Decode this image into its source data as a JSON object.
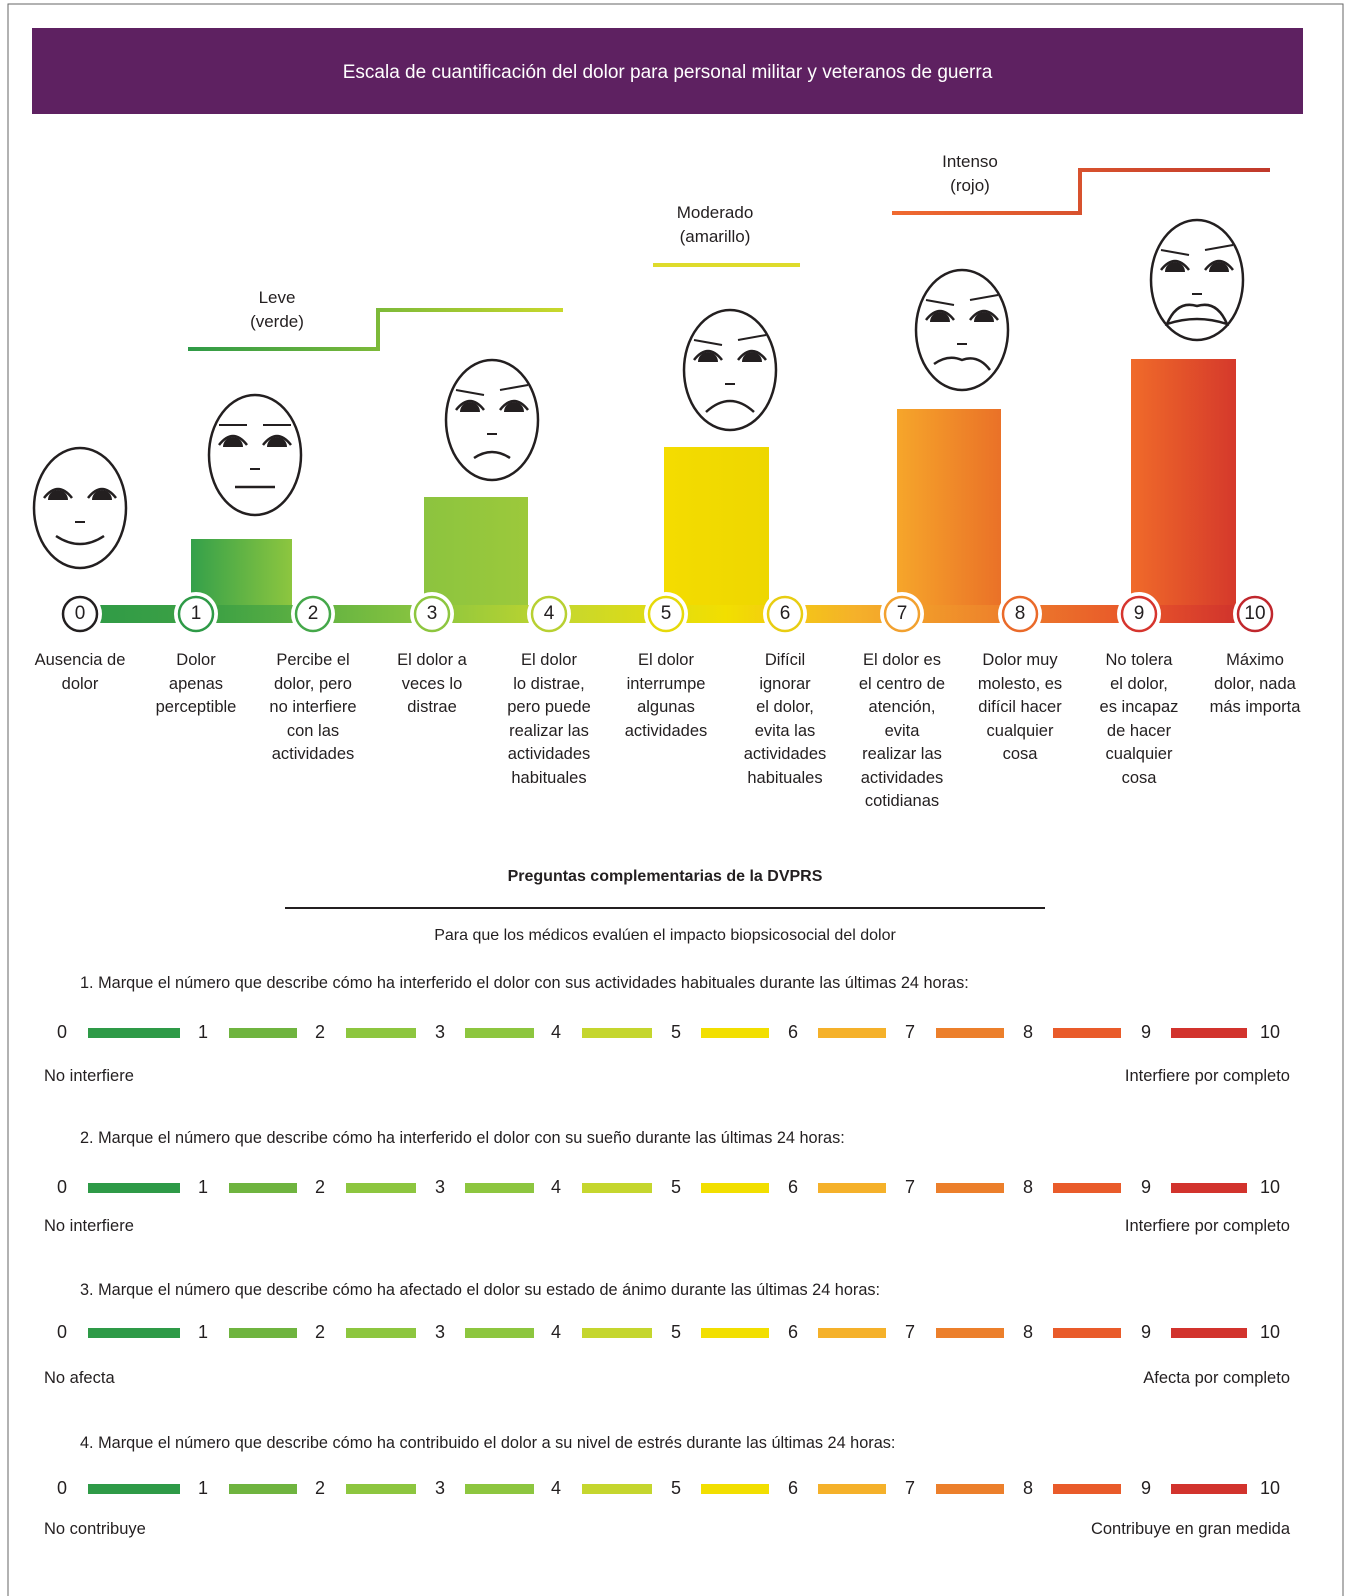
{
  "header": {
    "title": "Escala de cuantificación del dolor para personal militar y veteranos de guerra"
  },
  "severity_bands": [
    "Leve\n(verde)",
    "Moderado\n(amarillo)",
    "Intenso\n(rojo)"
  ],
  "levels": [
    {
      "number": 0,
      "description": "Ausencia de\ndolor"
    },
    {
      "number": 1,
      "description": "Dolor\napenas\nperceptible"
    },
    {
      "number": 2,
      "description": "Percibe el\ndolor, pero\nno interfiere\ncon las\nactividades"
    },
    {
      "number": 3,
      "description": "El dolor a\nveces lo\ndistrae"
    },
    {
      "number": 4,
      "description": "El dolor\nlo distrae,\npero puede\nrealizar las\nactividades\nhabituales"
    },
    {
      "number": 5,
      "description": "El dolor\ninterrumpe\nalgunas\nactividades"
    },
    {
      "number": 6,
      "description": "Difícil\nignorar\nel dolor,\nevita las\nactividades\nhabituales"
    },
    {
      "number": 7,
      "description": "El dolor es\nel centro de\natención,\nevita\nrealizar las\nactividades\ncotidianas"
    },
    {
      "number": 8,
      "description": "Dolor muy\nmolesto, es\ndifícil hacer\ncualquier\ncosa"
    },
    {
      "number": 9,
      "description": "No tolera\nel dolor,\nes incapaz\nde hacer\ncualquier\ncosa"
    },
    {
      "number": 10,
      "description": "Máximo\ndolor, nada\nmás importa"
    }
  ],
  "supplementary": {
    "title": "Preguntas complementarias de la DVPRS",
    "subtitle": "Para que los médicos evalúen el impacto biopsicosocial del dolor",
    "scale": [
      0,
      1,
      2,
      3,
      4,
      5,
      6,
      7,
      8,
      9,
      10
    ],
    "questions": [
      {
        "text": "1. Marque el número que describe cómo ha interferido el dolor con sus actividades habituales durante las últimas 24 horas:",
        "low": "No interfiere",
        "high": "Interfiere por completo"
      },
      {
        "text": "2. Marque el número que describe cómo ha interferido el dolor con su sueño durante las últimas 24 horas:",
        "low": "No interfiere",
        "high": "Interfiere por completo"
      },
      {
        "text": "3. Marque el número que describe cómo ha afectado el dolor su estado de ánimo durante las últimas 24 horas:",
        "low": "No afecta",
        "high": "Afecta por completo"
      },
      {
        "text": "4. Marque el número que describe cómo ha contribuido el dolor a su nivel de estrés durante las últimas 24 horas:",
        "low": "No contribuye",
        "high": "Contribuye en gran medida"
      }
    ]
  }
}
